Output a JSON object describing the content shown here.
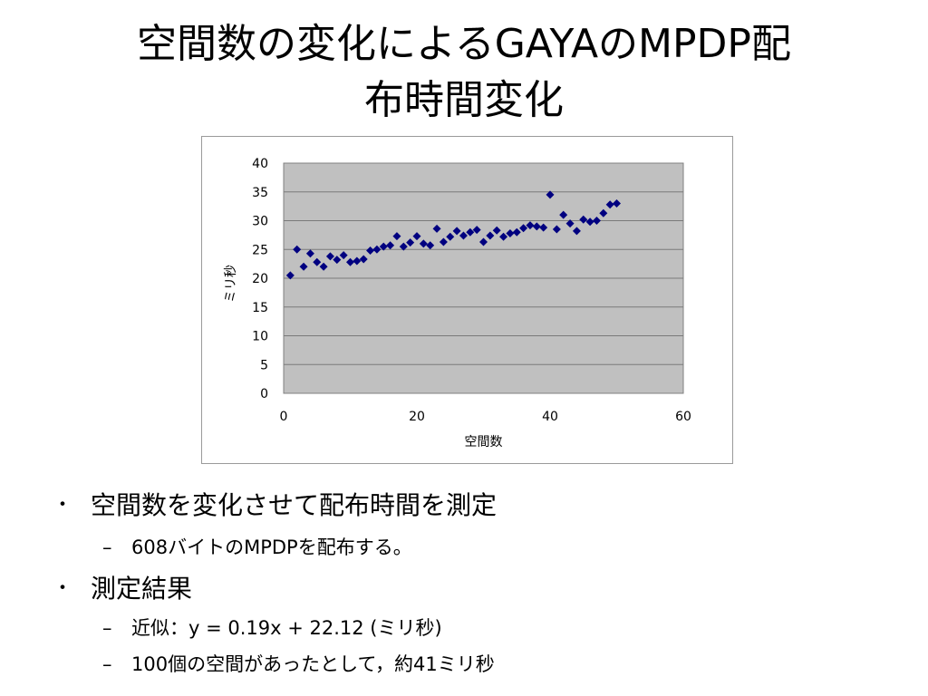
{
  "slide": {
    "title_line1": "空間数の変化によるGAYAのMPDP配",
    "title_line2": "布時間変化"
  },
  "chart_data": {
    "type": "scatter",
    "xlabel": "空間数",
    "ylabel": "ミリ秒",
    "xlim": [
      0,
      60
    ],
    "ylim": [
      0,
      40
    ],
    "x_ticks": [
      "0",
      "20",
      "40",
      "60"
    ],
    "y_ticks": [
      "0",
      "5",
      "10",
      "15",
      "20",
      "25",
      "30",
      "35",
      "40"
    ],
    "grid": "horizontal",
    "plot_background": "#c0c0c0",
    "marker_color": "#000080",
    "marker": "diamond",
    "legend": "none",
    "points": [
      {
        "x": 1,
        "y": 20.5
      },
      {
        "x": 2,
        "y": 25.0
      },
      {
        "x": 3,
        "y": 22.0
      },
      {
        "x": 4,
        "y": 24.3
      },
      {
        "x": 5,
        "y": 22.8
      },
      {
        "x": 6,
        "y": 22.0
      },
      {
        "x": 7,
        "y": 23.8
      },
      {
        "x": 8,
        "y": 23.2
      },
      {
        "x": 9,
        "y": 24.0
      },
      {
        "x": 10,
        "y": 22.8
      },
      {
        "x": 11,
        "y": 23.0
      },
      {
        "x": 12,
        "y": 23.3
      },
      {
        "x": 13,
        "y": 24.8
      },
      {
        "x": 14,
        "y": 25.0
      },
      {
        "x": 15,
        "y": 25.5
      },
      {
        "x": 16,
        "y": 25.7
      },
      {
        "x": 17,
        "y": 27.3
      },
      {
        "x": 18,
        "y": 25.5
      },
      {
        "x": 19,
        "y": 26.2
      },
      {
        "x": 20,
        "y": 27.3
      },
      {
        "x": 21,
        "y": 26.0
      },
      {
        "x": 22,
        "y": 25.7
      },
      {
        "x": 23,
        "y": 28.6
      },
      {
        "x": 24,
        "y": 26.3
      },
      {
        "x": 25,
        "y": 27.2
      },
      {
        "x": 26,
        "y": 28.2
      },
      {
        "x": 27,
        "y": 27.4
      },
      {
        "x": 28,
        "y": 28.0
      },
      {
        "x": 29,
        "y": 28.4
      },
      {
        "x": 30,
        "y": 26.3
      },
      {
        "x": 31,
        "y": 27.4
      },
      {
        "x": 32,
        "y": 28.3
      },
      {
        "x": 33,
        "y": 27.2
      },
      {
        "x": 34,
        "y": 27.8
      },
      {
        "x": 35,
        "y": 28.0
      },
      {
        "x": 36,
        "y": 28.7
      },
      {
        "x": 37,
        "y": 29.2
      },
      {
        "x": 38,
        "y": 29.0
      },
      {
        "x": 39,
        "y": 28.8
      },
      {
        "x": 40,
        "y": 34.5
      },
      {
        "x": 41,
        "y": 28.5
      },
      {
        "x": 42,
        "y": 31.0
      },
      {
        "x": 43,
        "y": 29.5
      },
      {
        "x": 44,
        "y": 28.2
      },
      {
        "x": 45,
        "y": 30.2
      },
      {
        "x": 46,
        "y": 29.8
      },
      {
        "x": 47,
        "y": 30.0
      },
      {
        "x": 48,
        "y": 31.3
      },
      {
        "x": 49,
        "y": 32.8
      },
      {
        "x": 50,
        "y": 33.0
      }
    ]
  },
  "bullets": [
    {
      "mark": "・",
      "text": "空間数を変化させて配布時間を測定",
      "sub": [
        {
          "mark": "–",
          "text": "608バイトのMPDPを配布する。"
        }
      ]
    },
    {
      "mark": "・",
      "text": "測定結果",
      "sub": [
        {
          "mark": "–",
          "text": "近似：y = 0.19x + 22.12 (ミリ秒)"
        },
        {
          "mark": "–",
          "text": "100個の空間があったとして，約41ミリ秒"
        }
      ]
    }
  ]
}
